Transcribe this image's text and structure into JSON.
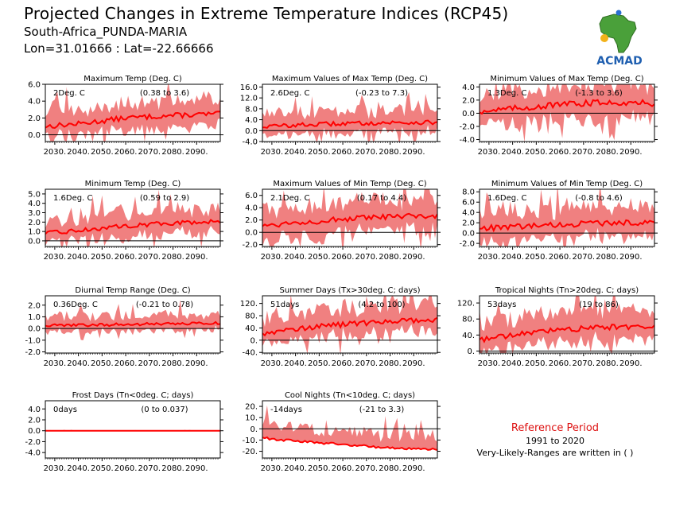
{
  "page": {
    "title": "Projected Changes in Extreme Temperature Indices (RCP45)",
    "location": "South-Africa_PUNDA-MARIA",
    "coords": "Lon=31.01666 : Lat=-22.66666",
    "logo_text": "ACMAD",
    "reference_title": "Reference Period",
    "reference_years": "1991 to 2020",
    "reference_note": "Very-Likely-Ranges are written in ( )"
  },
  "colors": {
    "band": "#f08080",
    "line": "#ff0000",
    "axis": "#000000",
    "ref_title": "#dd1111"
  },
  "chart_data": [
    {
      "type": "area",
      "title": "Maximum Temp (Deg. C)",
      "summary": "2Deg. C",
      "range": "(0.38 to 3.6)",
      "ylim": [
        -0.8,
        6.0
      ],
      "yticks": [
        "6.0",
        "4.0",
        "2.0",
        "0.0"
      ],
      "ytick_values": [
        6,
        4,
        2,
        0
      ],
      "xticks": [
        "2030.",
        "2040.",
        "2050.",
        "2060.",
        "2070.",
        "2080.",
        "2090."
      ],
      "xlim": [
        2026,
        2100
      ],
      "x_start": 2026,
      "x_end": 2100,
      "anchors": [
        {
          "x": 2026,
          "y": 1.0
        },
        {
          "x": 2040,
          "y": 1.3
        },
        {
          "x": 2060,
          "y": 2.0
        },
        {
          "x": 2080,
          "y": 2.3
        },
        {
          "x": 2100,
          "y": 2.5
        }
      ],
      "band_low": 1.1,
      "band_high": 1.3
    },
    {
      "type": "area",
      "title": "Maximum Values of Max Temp (Deg. C)",
      "summary": "2.6Deg. C",
      "range": "(-0.23 to 7.3)",
      "ylim": [
        -4.0,
        17.0
      ],
      "yticks": [
        "16.0",
        "12.0",
        "8.0",
        "4.0",
        "0.0",
        "-4.0"
      ],
      "ytick_values": [
        16,
        12,
        8,
        4,
        0,
        -4
      ],
      "xticks": [
        "2030.",
        "2040.",
        "2050.",
        "2060.",
        "2070.",
        "2080.",
        "2090."
      ],
      "xlim": [
        2026,
        2100
      ],
      "x_start": 2026,
      "x_end": 2100,
      "anchors": [
        {
          "x": 2026,
          "y": 1.5
        },
        {
          "x": 2040,
          "y": 2.0
        },
        {
          "x": 2060,
          "y": 2.6
        },
        {
          "x": 2080,
          "y": 2.9
        },
        {
          "x": 2100,
          "y": 3.0
        }
      ],
      "band_low": 2.5,
      "band_high": 3.6
    },
    {
      "type": "area",
      "title": "Minimum Values of Max Temp (Deg. C)",
      "summary": "1.3Deg. C",
      "range": "(-1.3 to 3.6)",
      "ylim": [
        -4.3,
        4.4
      ],
      "yticks": [
        "4.0",
        "2.0",
        "0.0",
        "-2.0",
        "-4.0"
      ],
      "ytick_values": [
        4,
        2,
        0,
        -2,
        -4
      ],
      "xticks": [
        "2030.",
        "2040.",
        "2050.",
        "2060.",
        "2070.",
        "2080.",
        "2090."
      ],
      "xlim": [
        2026,
        2100
      ],
      "x_start": 2026,
      "x_end": 2100,
      "anchors": [
        {
          "x": 2026,
          "y": 0.3
        },
        {
          "x": 2040,
          "y": 0.7
        },
        {
          "x": 2060,
          "y": 1.3
        },
        {
          "x": 2080,
          "y": 1.7
        },
        {
          "x": 2100,
          "y": 1.5
        }
      ],
      "band_low": 1.6,
      "band_high": 2.0
    },
    {
      "type": "area",
      "title": "Minimum Temp (Deg. C)",
      "summary": "1.6Deg. C",
      "range": "(0.59 to 2.9)",
      "ylim": [
        -0.6,
        5.5
      ],
      "yticks": [
        "5.0",
        "4.0",
        "3.0",
        "2.0",
        "1.0",
        "0.0"
      ],
      "ytick_values": [
        5,
        4,
        3,
        2,
        1,
        0
      ],
      "xticks": [
        "2030.",
        "2040.",
        "2050.",
        "2060.",
        "2070.",
        "2080.",
        "2090."
      ],
      "xlim": [
        2026,
        2100
      ],
      "x_start": 2026,
      "x_end": 2100,
      "anchors": [
        {
          "x": 2026,
          "y": 0.8
        },
        {
          "x": 2040,
          "y": 1.1
        },
        {
          "x": 2060,
          "y": 1.6
        },
        {
          "x": 2080,
          "y": 1.9
        },
        {
          "x": 2100,
          "y": 2.1
        }
      ],
      "band_low": 0.8,
      "band_high": 1.0
    },
    {
      "type": "area",
      "title": "Maximum Values of Min Temp (Deg. C)",
      "summary": "2.1Deg. C",
      "range": "(0.17 to 4.4)",
      "ylim": [
        -2.3,
        7.0
      ],
      "yticks": [
        "6.0",
        "4.0",
        "2.0",
        "0.0",
        "-2.0"
      ],
      "ytick_values": [
        6,
        4,
        2,
        0,
        -2
      ],
      "xticks": [
        "2030.",
        "2040.",
        "2050.",
        "2060.",
        "2070.",
        "2080.",
        "2090."
      ],
      "xlim": [
        2026,
        2100
      ],
      "x_start": 2026,
      "x_end": 2100,
      "anchors": [
        {
          "x": 2026,
          "y": 1.1
        },
        {
          "x": 2040,
          "y": 1.6
        },
        {
          "x": 2060,
          "y": 2.1
        },
        {
          "x": 2080,
          "y": 2.5
        },
        {
          "x": 2100,
          "y": 2.7
        }
      ],
      "band_low": 1.7,
      "band_high": 2.0
    },
    {
      "type": "area",
      "title": "Minimum Values of Min Temp (Deg. C)",
      "summary": "1.6Deg. C",
      "range": "(-0.8 to 4.6)",
      "ylim": [
        -2.6,
        8.5
      ],
      "yticks": [
        "8.0",
        "6.0",
        "4.0",
        "2.0",
        "0.0",
        "-2.0"
      ],
      "ytick_values": [
        8,
        6,
        4,
        2,
        0,
        -2
      ],
      "xticks": [
        "2030.",
        "2040.",
        "2050.",
        "2060.",
        "2070.",
        "2080.",
        "2090."
      ],
      "xlim": [
        2026,
        2100
      ],
      "x_start": 2026,
      "x_end": 2100,
      "anchors": [
        {
          "x": 2026,
          "y": 0.9
        },
        {
          "x": 2040,
          "y": 1.2
        },
        {
          "x": 2060,
          "y": 1.6
        },
        {
          "x": 2080,
          "y": 2.0
        },
        {
          "x": 2100,
          "y": 2.1
        }
      ],
      "band_low": 2.0,
      "band_high": 2.3
    },
    {
      "type": "area",
      "title": "Diurnal Temp Range (Deg. C)",
      "summary": "0.36Deg. C",
      "range": "(-0.21 to 0.78)",
      "ylim": [
        -2.1,
        2.8
      ],
      "yticks": [
        "2.0",
        "1.0",
        "0.0",
        "-1.0",
        "-2.0"
      ],
      "ytick_values": [
        2,
        1,
        0,
        -1,
        -2
      ],
      "xticks": [
        "2030.",
        "2040.",
        "2050.",
        "2060.",
        "2070.",
        "2080.",
        "2090."
      ],
      "xlim": [
        2026,
        2100
      ],
      "x_start": 2026,
      "x_end": 2100,
      "anchors": [
        {
          "x": 2026,
          "y": 0.25
        },
        {
          "x": 2060,
          "y": 0.35
        },
        {
          "x": 2100,
          "y": 0.45
        }
      ],
      "band_low": 0.4,
      "band_high": 0.6
    },
    {
      "type": "area",
      "title": "Summer Days (Tx>30deg. C; days)",
      "summary": "51days",
      "range": "(4.2 to 100)",
      "ylim": [
        -42,
        145
      ],
      "yticks": [
        "120.",
        "80.",
        "40.",
        "0.",
        "-40."
      ],
      "ytick_values": [
        120,
        80,
        40,
        0,
        -40
      ],
      "xticks": [
        "2030.",
        "2040.",
        "2050.",
        "2060.",
        "2070.",
        "2080.",
        "2090."
      ],
      "xlim": [
        2026,
        2100
      ],
      "x_start": 2026,
      "x_end": 2100,
      "anchors": [
        {
          "x": 2026,
          "y": 22
        },
        {
          "x": 2040,
          "y": 38
        },
        {
          "x": 2060,
          "y": 51
        },
        {
          "x": 2080,
          "y": 62
        },
        {
          "x": 2100,
          "y": 66
        }
      ],
      "band_low": 28,
      "band_high": 38
    },
    {
      "type": "area",
      "title": "Tropical Nights (Tn>20deg. C; days)",
      "summary": "53days",
      "range": "(19 to 86)",
      "ylim": [
        -5,
        138
      ],
      "yticks": [
        "120.",
        "80.",
        "40.",
        "0."
      ],
      "ytick_values": [
        120,
        80,
        40,
        0
      ],
      "xticks": [
        "2030.",
        "2040.",
        "2050.",
        "2060.",
        "2070.",
        "2080.",
        "2090."
      ],
      "xlim": [
        2026,
        2100
      ],
      "x_start": 2026,
      "x_end": 2100,
      "anchors": [
        {
          "x": 2026,
          "y": 28
        },
        {
          "x": 2040,
          "y": 40
        },
        {
          "x": 2060,
          "y": 53
        },
        {
          "x": 2080,
          "y": 60
        },
        {
          "x": 2100,
          "y": 62
        }
      ],
      "band_low": 24,
      "band_high": 30
    },
    {
      "type": "area",
      "title": "Frost Days (Tn<0deg. C; days)",
      "summary": "0days",
      "range": "(0 to 0.037)",
      "ylim": [
        -5.0,
        5.5
      ],
      "yticks": [
        "4.0",
        "2.0",
        "0.0",
        "-2.0",
        "-4.0"
      ],
      "ytick_values": [
        4,
        2,
        0,
        -2,
        -4
      ],
      "xticks": [
        "2030.",
        "2040.",
        "2050.",
        "2060.",
        "2070.",
        "2080.",
        "2090."
      ],
      "xlim": [
        2026,
        2100
      ],
      "x_start": 2026,
      "x_end": 2100,
      "anchors": [
        {
          "x": 2026,
          "y": 0
        },
        {
          "x": 2100,
          "y": 0
        }
      ],
      "band_low": 0,
      "band_high": 0.05
    },
    {
      "type": "area",
      "title": "Cool Nights (Tn<10deg. C; days)",
      "summary": "-14days",
      "range": "(-21 to 3.3)",
      "ylim": [
        -26,
        25
      ],
      "yticks": [
        "20.",
        "10.",
        "0.",
        "-10.",
        "-20."
      ],
      "ytick_values": [
        20,
        10,
        0,
        -10,
        -20
      ],
      "xticks": [
        "2030.",
        "2040.",
        "2050.",
        "2060.",
        "2070.",
        "2080.",
        "2090."
      ],
      "xlim": [
        2026,
        2100
      ],
      "x_start": 2026,
      "x_end": 2100,
      "anchors": [
        {
          "x": 2026,
          "y": -8
        },
        {
          "x": 2040,
          "y": -11
        },
        {
          "x": 2060,
          "y": -14
        },
        {
          "x": 2080,
          "y": -17
        },
        {
          "x": 2100,
          "y": -18
        }
      ],
      "band_low": 0,
      "band_high": 9
    }
  ]
}
